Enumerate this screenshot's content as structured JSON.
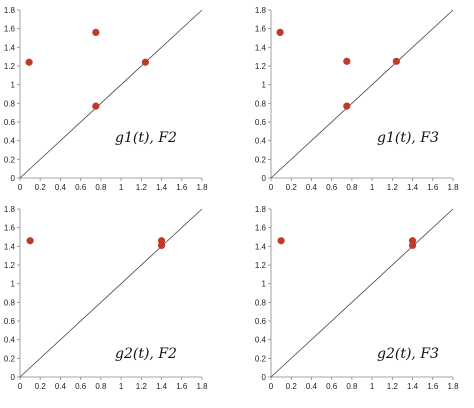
{
  "chart_data": [
    {
      "type": "scatter",
      "annotation": "g1(t), F2",
      "xlim": [
        0,
        1.8
      ],
      "ylim": [
        0,
        1.8
      ],
      "x_ticks": [
        "0",
        "0.2",
        "0.4",
        "0.6",
        "0.8",
        "1",
        "1.2",
        "1.4",
        "1.6",
        "1.8"
      ],
      "y_ticks": [
        "0",
        "0.2",
        "0.4",
        "0.6",
        "0.8",
        "1",
        "1.2",
        "1.4",
        "1.6",
        "1.8"
      ],
      "diagonal": true,
      "grid": false,
      "points": [
        {
          "x": 0.09,
          "y": 1.24
        },
        {
          "x": 0.75,
          "y": 1.56
        },
        {
          "x": 0.75,
          "y": 0.77
        },
        {
          "x": 1.24,
          "y": 1.24
        }
      ]
    },
    {
      "type": "scatter",
      "annotation": "g1(t), F3",
      "xlim": [
        0,
        1.8
      ],
      "ylim": [
        0,
        1.8
      ],
      "x_ticks": [
        "0",
        "0.2",
        "0.4",
        "0.6",
        "0.8",
        "1",
        "1.2",
        "1.4",
        "1.6",
        "1.8"
      ],
      "y_ticks": [
        "0",
        "0.2",
        "0.4",
        "0.6",
        "0.8",
        "1",
        "1.2",
        "1.4",
        "1.6",
        "1.8"
      ],
      "diagonal": true,
      "grid": false,
      "points": [
        {
          "x": 0.09,
          "y": 1.56
        },
        {
          "x": 0.75,
          "y": 1.25
        },
        {
          "x": 0.75,
          "y": 0.77
        },
        {
          "x": 1.24,
          "y": 1.25
        }
      ]
    },
    {
      "type": "scatter",
      "annotation": "g2(t), F2",
      "xlim": [
        0,
        1.8
      ],
      "ylim": [
        0,
        1.8
      ],
      "x_ticks": [
        "0",
        "0.2",
        "0.4",
        "0.6",
        "0.8",
        "1",
        "1.2",
        "1.4",
        "1.6",
        "1.8"
      ],
      "y_ticks": [
        "0",
        "0.2",
        "0.4",
        "0.6",
        "0.8",
        "1",
        "1.2",
        "1.4",
        "1.6",
        "1.8"
      ],
      "diagonal": true,
      "grid": false,
      "points": [
        {
          "x": 0.1,
          "y": 1.46
        },
        {
          "x": 1.4,
          "y": 1.46
        },
        {
          "x": 1.4,
          "y": 1.41
        }
      ]
    },
    {
      "type": "scatter",
      "annotation": "g2(t), F3",
      "xlim": [
        0,
        1.8
      ],
      "ylim": [
        0,
        1.8
      ],
      "x_ticks": [
        "0",
        "0.2",
        "0.4",
        "0.6",
        "0.8",
        "1",
        "1.2",
        "1.4",
        "1.6",
        "1.8"
      ],
      "y_ticks": [
        "0",
        "0.2",
        "0.4",
        "0.6",
        "0.8",
        "1",
        "1.2",
        "1.4",
        "1.6",
        "1.8"
      ],
      "diagonal": true,
      "grid": false,
      "points": [
        {
          "x": 0.1,
          "y": 1.46
        },
        {
          "x": 1.4,
          "y": 1.46
        },
        {
          "x": 1.4,
          "y": 1.41
        }
      ]
    }
  ],
  "colors": {
    "point": "#c0392b",
    "axis": "#888888",
    "diagonal": "#444444"
  }
}
